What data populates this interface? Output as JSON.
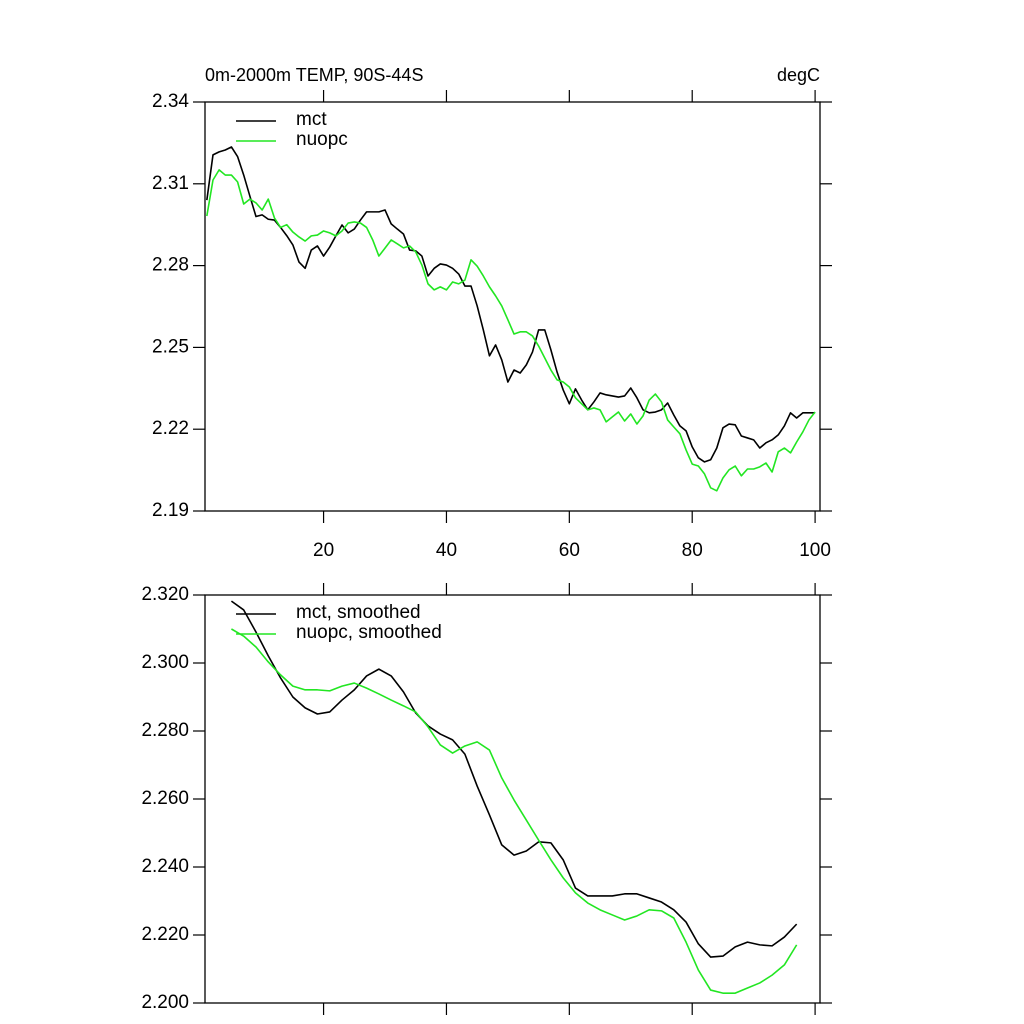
{
  "chart_data": [
    {
      "type": "line",
      "title": "0m-2000m TEMP, 90S-44S",
      "units": "degC",
      "legend": "upper left",
      "x": [
        1,
        2,
        3,
        4,
        5,
        6,
        7,
        8,
        9,
        10,
        11,
        12,
        13,
        14,
        15,
        16,
        17,
        18,
        19,
        20,
        21,
        22,
        23,
        24,
        25,
        26,
        27,
        28,
        29,
        30,
        31,
        32,
        33,
        34,
        35,
        36,
        37,
        38,
        39,
        40,
        41,
        42,
        43,
        44,
        45,
        46,
        47,
        48,
        49,
        50,
        51,
        52,
        53,
        54,
        55,
        56,
        57,
        58,
        59,
        60,
        61,
        62,
        63,
        64,
        65,
        66,
        67,
        68,
        69,
        70,
        71,
        72,
        73,
        74,
        75,
        76,
        77,
        78,
        79,
        80,
        81,
        82,
        83,
        84,
        85,
        86,
        87,
        88,
        89,
        90,
        91,
        92,
        93,
        94,
        95,
        96,
        97,
        98,
        99,
        100
      ],
      "series": [
        {
          "name": "mct",
          "color": "#000000",
          "values": [
            2.304,
            2.3206,
            2.3217,
            2.3224,
            2.3235,
            2.32,
            2.3132,
            2.3055,
            2.298,
            2.2986,
            2.297,
            2.2967,
            2.294,
            2.291,
            2.2876,
            2.2813,
            2.279,
            2.2857,
            2.2872,
            2.2835,
            2.2868,
            2.2909,
            2.2949,
            2.292,
            2.2934,
            2.2967,
            2.2997,
            2.2997,
            2.2997,
            2.3004,
            2.2953,
            2.2934,
            2.2916,
            2.2857,
            2.2854,
            2.2835,
            2.2762,
            2.279,
            2.2806,
            2.2802,
            2.279,
            2.2769,
            2.2725,
            2.2725,
            2.2652,
            2.2564,
            2.2469,
            2.2509,
            2.2454,
            2.2373,
            2.2417,
            2.2406,
            2.2436,
            2.2483,
            2.2564,
            2.2564,
            2.2491,
            2.241,
            2.2344,
            2.2293,
            2.2348,
            2.2307,
            2.2271,
            2.23,
            2.2333,
            2.2326,
            2.2322,
            2.2318,
            2.2322,
            2.2351,
            2.2315,
            2.2271,
            2.226,
            2.2263,
            2.2271,
            2.2296,
            2.2252,
            2.2212,
            2.2194,
            2.2135,
            2.2095,
            2.208,
            2.2088,
            2.2131,
            2.2205,
            2.2219,
            2.2216,
            2.2175,
            2.2168,
            2.2161,
            2.2131,
            2.215,
            2.2161,
            2.2179,
            2.2212,
            2.226,
            2.2241,
            2.226,
            2.226,
            2.226
          ]
        },
        {
          "name": "nuopc",
          "color": "#22e622",
          "values": [
            2.2982,
            2.3114,
            2.3151,
            2.3132,
            2.3132,
            2.3107,
            2.3026,
            2.3044,
            2.303,
            2.3004,
            2.3044,
            2.2975,
            2.294,
            2.295,
            2.2923,
            2.2905,
            2.289,
            2.2909,
            2.2912,
            2.2927,
            2.292,
            2.2909,
            2.2927,
            2.2956,
            2.296,
            2.2956,
            2.294,
            2.2894,
            2.2835,
            2.2864,
            2.2894,
            2.288,
            2.2865,
            2.2872,
            2.285,
            2.2802,
            2.2733,
            2.2711,
            2.2722,
            2.2711,
            2.274,
            2.2733,
            2.2747,
            2.2821,
            2.2798,
            2.2762,
            2.2722,
            2.2689,
            2.2652,
            2.2601,
            2.2549,
            2.2557,
            2.2557,
            2.2542,
            2.2505,
            2.2461,
            2.2417,
            2.2381,
            2.2373,
            2.2355,
            2.2315,
            2.2293,
            2.2271,
            2.2278,
            2.2271,
            2.2227,
            2.2245,
            2.2263,
            2.223,
            2.2256,
            2.2219,
            2.2249,
            2.2307,
            2.2329,
            2.23,
            2.2234,
            2.2208,
            2.2183,
            2.2124,
            2.2072,
            2.2065,
            2.2036,
            2.1985,
            2.1974,
            2.2021,
            2.2051,
            2.2065,
            2.2029,
            2.2054,
            2.2054,
            2.2062,
            2.2076,
            2.2043,
            2.2117,
            2.2131,
            2.2113,
            2.2153,
            2.219,
            2.2234,
            2.2263
          ]
        }
      ],
      "xlim": [
        0.7,
        100.8
      ],
      "xticks": [
        20,
        40,
        60,
        80,
        100
      ],
      "ylim": [
        2.19,
        2.34
      ],
      "yticks": [
        2.19,
        2.22,
        2.25,
        2.28,
        2.31,
        2.34
      ]
    },
    {
      "type": "line",
      "legend": "upper left",
      "x": [
        5,
        7,
        9,
        11,
        13,
        15,
        17,
        19,
        21,
        23,
        25,
        27,
        29,
        31,
        33,
        35,
        37,
        39,
        41,
        43,
        45,
        47,
        49,
        51,
        53,
        55,
        57,
        59,
        61,
        63,
        65,
        67,
        69,
        71,
        73,
        75,
        77,
        79,
        81,
        83,
        85,
        87,
        89,
        91,
        93,
        95,
        97
      ],
      "series": [
        {
          "name": "mct, smoothed",
          "color": "#000000",
          "values": [
            2.3182,
            2.3156,
            2.3091,
            2.3021,
            2.2956,
            2.29,
            2.2868,
            2.285,
            2.2856,
            2.2891,
            2.2921,
            2.2962,
            2.2982,
            2.2962,
            2.2915,
            2.2853,
            2.2815,
            2.2791,
            2.2774,
            2.2732,
            2.2638,
            2.2553,
            2.2465,
            2.2435,
            2.2447,
            2.2474,
            2.2471,
            2.2421,
            2.2338,
            2.2315,
            2.2315,
            2.2315,
            2.2321,
            2.2321,
            2.2309,
            2.2297,
            2.2274,
            2.2238,
            2.2174,
            2.2135,
            2.2138,
            2.2165,
            2.2179,
            2.2171,
            2.2168,
            2.2194,
            2.2232
          ]
        },
        {
          "name": "nuopc, smoothed",
          "color": "#22e622",
          "values": [
            2.31,
            2.3079,
            2.3047,
            2.3003,
            2.2965,
            2.2932,
            2.2921,
            2.2921,
            2.2918,
            2.2932,
            2.2941,
            2.2926,
            2.2909,
            2.2891,
            2.2874,
            2.2856,
            2.2812,
            2.2759,
            2.2735,
            2.2756,
            2.2768,
            2.2744,
            2.2662,
            2.2597,
            2.2538,
            2.2479,
            2.2421,
            2.2368,
            2.2324,
            2.2294,
            2.2274,
            2.2259,
            2.2244,
            2.2256,
            2.2274,
            2.2271,
            2.225,
            2.2179,
            2.2097,
            2.2038,
            2.2029,
            2.2029,
            2.2044,
            2.2059,
            2.2082,
            2.2112,
            2.2171
          ]
        }
      ],
      "xlim": [
        0.7,
        100.8
      ],
      "xticks": [
        20,
        40,
        60,
        80,
        100
      ],
      "ylim": [
        2.2,
        2.32
      ],
      "yticks": [
        {
          "value": 2.2,
          "label": "2.200"
        },
        {
          "value": 2.22,
          "label": "2.220"
        },
        {
          "value": 2.24,
          "label": "2.240"
        },
        {
          "value": 2.26,
          "label": "2.260"
        },
        {
          "value": 2.28,
          "label": "2.280"
        },
        {
          "value": 2.3,
          "label": "2.300"
        },
        {
          "value": 2.32,
          "label": "2.320"
        }
      ]
    }
  ]
}
